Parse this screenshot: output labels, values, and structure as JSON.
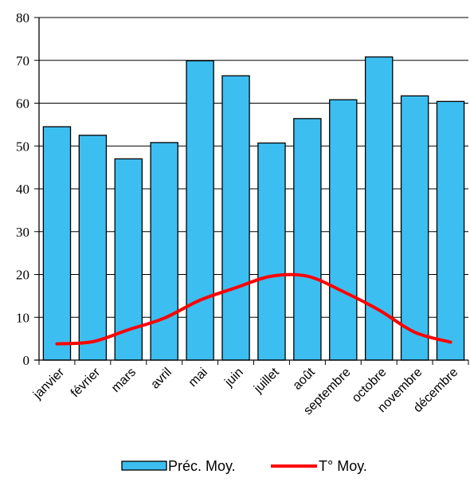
{
  "chart_data": {
    "type": "bar",
    "categories": [
      "janvier",
      "février",
      "mars",
      "avril",
      "mai",
      "juin",
      "juillet",
      "août",
      "septembre",
      "octobre",
      "novembre",
      "décembre"
    ],
    "series": [
      {
        "name": "Préc. Moy.",
        "type": "bar",
        "color": "#3DBEF0",
        "values": [
          54.5,
          52.5,
          47,
          50.8,
          69.9,
          66.4,
          50.7,
          56.4,
          60.8,
          70.8,
          61.7,
          60.4
        ]
      },
      {
        "name": "T° Moy.",
        "type": "line",
        "color": "#FF0000",
        "values": [
          3.8,
          4.3,
          7.1,
          9.8,
          14.0,
          16.9,
          19.6,
          19.6,
          16.0,
          11.7,
          6.5,
          4.2
        ]
      }
    ],
    "ylim": [
      0,
      80
    ],
    "yticks": [
      0,
      10,
      20,
      30,
      40,
      50,
      60,
      70,
      80
    ],
    "grid": true,
    "legend": "bottom"
  }
}
